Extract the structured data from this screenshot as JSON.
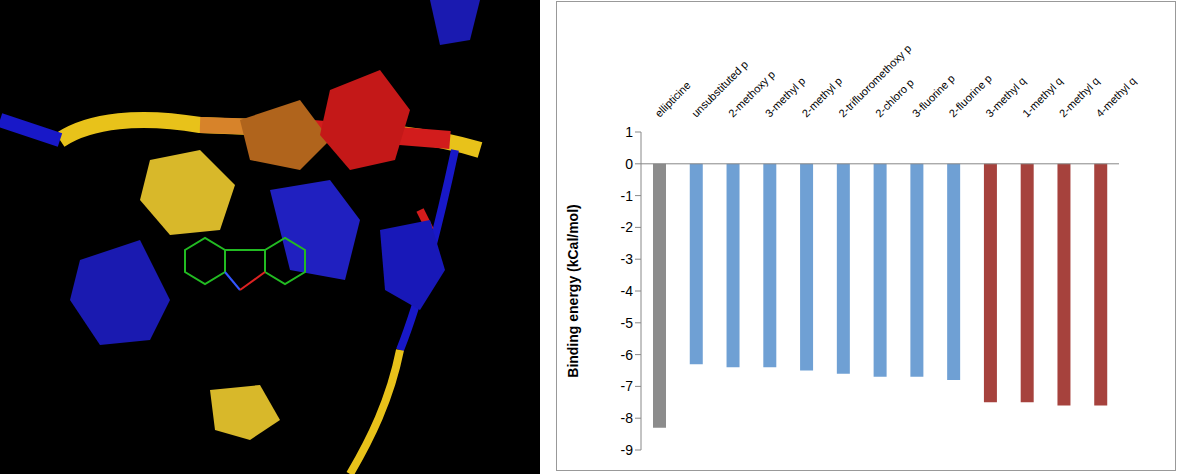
{
  "chart_data": {
    "type": "bar",
    "y_label": "Binding energy (kCal/mol)",
    "categories": [
      "ellipticine",
      "unsubstituted p",
      "2-methoxy p",
      "3-methyl p",
      "2-methyl p",
      "2-trifluoromethoxy p",
      "2-chloro p",
      "3-fluorine p",
      "2-fluorine p",
      "3-methyl q",
      "1-methyl q",
      "2-methyl q",
      "4-methyl q"
    ],
    "values": [
      -8.3,
      -6.3,
      -6.4,
      -6.4,
      -6.5,
      -6.6,
      -6.7,
      -6.7,
      -6.8,
      -7.5,
      -7.5,
      -7.6,
      -7.6
    ],
    "colors": [
      "#8c8c8c",
      "#6fa0d4",
      "#6fa0d4",
      "#6fa0d4",
      "#6fa0d4",
      "#6fa0d4",
      "#6fa0d4",
      "#6fa0d4",
      "#6fa0d4",
      "#a6423d",
      "#a6423d",
      "#a6423d",
      "#a6423d"
    ],
    "ylim": [
      -9,
      1
    ],
    "yticks": [
      -9,
      -8,
      -7,
      -6,
      -5,
      -4,
      -3,
      -2,
      -1,
      0,
      1
    ],
    "grid": false
  }
}
